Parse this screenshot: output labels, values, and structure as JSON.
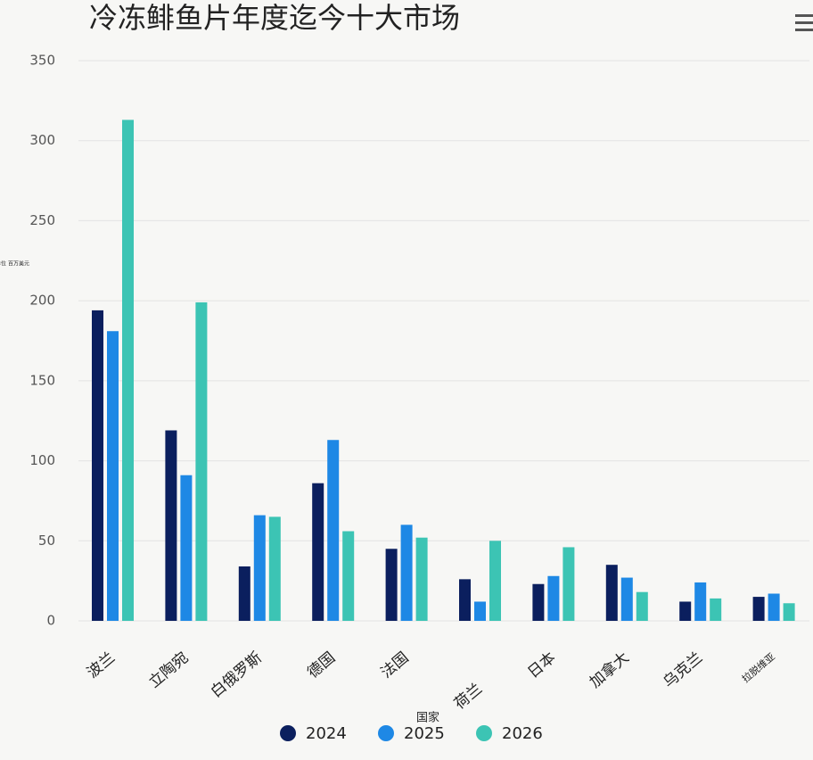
{
  "chart_data": {
    "type": "bar",
    "title": "冷冻鲱鱼片年度迄今十大市场",
    "y_label": "价值单位 百万美元",
    "x_label": "国家",
    "categories": [
      "波兰",
      "立陶宛",
      "白俄罗斯",
      "德国",
      "法国",
      "荷兰",
      "日本",
      "加拿大",
      "乌克兰",
      "拉脱维亚"
    ],
    "series": [
      {
        "name": "2024",
        "color": "#0b1f5e",
        "values": [
          194,
          119,
          34,
          86,
          45,
          26,
          23,
          35,
          12,
          15
        ]
      },
      {
        "name": "2025",
        "color": "#1e88e5",
        "values": [
          181,
          91,
          66,
          113,
          60,
          12,
          28,
          27,
          24,
          17
        ]
      },
      {
        "name": "2026",
        "color": "#3cc4b4",
        "values": [
          313,
          199,
          65,
          56,
          52,
          50,
          46,
          18,
          14,
          11
        ]
      }
    ],
    "ylim": [
      0,
      350
    ],
    "yticks": [
      0,
      50,
      100,
      150,
      200,
      250,
      300,
      350
    ],
    "grid": true
  }
}
